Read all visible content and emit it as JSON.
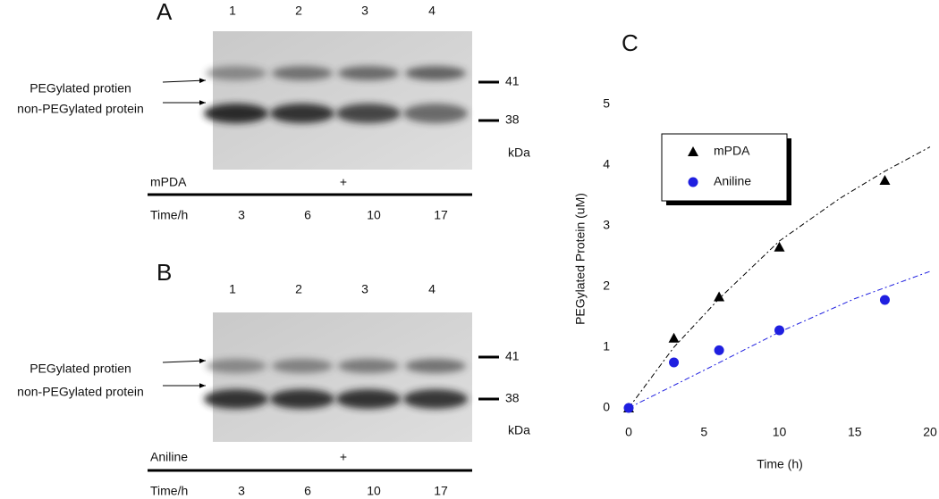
{
  "panels": [
    {
      "letter": "A",
      "lanes": [
        "1",
        "2",
        "3",
        "4"
      ],
      "markers": [
        "41",
        "38"
      ],
      "unit": "kDa",
      "bands": [
        "PEGylated protien",
        "non-PEGylated protein"
      ],
      "reagent": "mPDA",
      "sign": "+",
      "time_label": "Time/h",
      "times": [
        "3",
        "6",
        "10",
        "17"
      ]
    },
    {
      "letter": "B",
      "lanes": [
        "1",
        "2",
        "3",
        "4"
      ],
      "markers": [
        "41",
        "38"
      ],
      "unit": "kDa",
      "bands": [
        "PEGylated protien",
        "non-PEGylated protein"
      ],
      "reagent": "Aniline",
      "sign": "+",
      "time_label": "Time/h",
      "times": [
        "3",
        "6",
        "10",
        "17"
      ]
    }
  ],
  "chart_data": {
    "type": "scatter",
    "title": "C",
    "x_label": "Time (h)",
    "y_label": "PEGylated Protein (uM)",
    "xlim": [
      0,
      20
    ],
    "xticks": [
      0,
      5,
      10,
      15,
      20
    ],
    "ylim": [
      0,
      5
    ],
    "yticks": [
      0,
      1,
      2,
      3,
      4,
      5
    ],
    "series": [
      {
        "name": "mPDA",
        "color": "#000000",
        "marker": "triangle",
        "x": [
          0,
          3,
          6,
          10,
          17
        ],
        "values": [
          0,
          1.15,
          1.83,
          2.65,
          3.75
        ]
      },
      {
        "name": "Aniline",
        "color": "#1f1fe0",
        "marker": "circle",
        "x": [
          0,
          3,
          6,
          10,
          17
        ],
        "values": [
          0,
          0.75,
          0.95,
          1.28,
          1.78
        ]
      }
    ],
    "fits": [
      {
        "color": "#000000",
        "linestyle": "dashed",
        "x": [
          0,
          3,
          6,
          10,
          14,
          17,
          20
        ],
        "values": [
          0,
          1.0,
          1.8,
          2.75,
          3.45,
          3.9,
          4.3
        ]
      },
      {
        "color": "#1f1fe0",
        "linestyle": "dashed",
        "x": [
          0,
          5,
          10,
          15,
          20
        ],
        "values": [
          0,
          0.62,
          1.25,
          1.8,
          2.25
        ]
      }
    ]
  }
}
